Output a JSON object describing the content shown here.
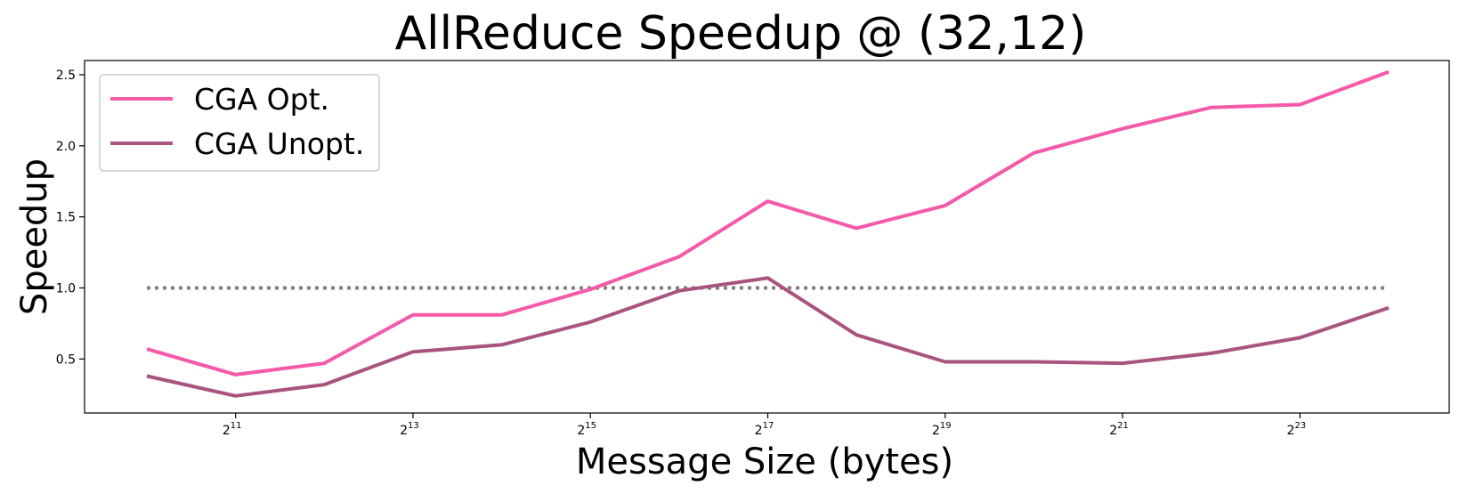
{
  "chart_data": {
    "type": "line",
    "title": "AllReduce Speedup @ (32,12)",
    "xlabel": "Message Size (bytes)",
    "ylabel": "Speedup",
    "x_scale": "log2",
    "x_tick_base": "2",
    "x": [
      1024,
      2048,
      4096,
      8192,
      16384,
      32768,
      65536,
      131072,
      262144,
      524288,
      1048576,
      2097152,
      4194304,
      8388608,
      16777216
    ],
    "x_ticks": [
      {
        "value": 2048,
        "exponent": "11"
      },
      {
        "value": 8192,
        "exponent": "13"
      },
      {
        "value": 32768,
        "exponent": "15"
      },
      {
        "value": 131072,
        "exponent": "17"
      },
      {
        "value": 524288,
        "exponent": "19"
      },
      {
        "value": 2097152,
        "exponent": "21"
      },
      {
        "value": 8388608,
        "exponent": "23"
      }
    ],
    "ylim": [
      0.12,
      2.6
    ],
    "y_ticks": [
      "0.5",
      "1.0",
      "1.5",
      "2.0",
      "2.5"
    ],
    "grid": false,
    "legend_position": "top-left",
    "series": [
      {
        "name": "CGA Opt.",
        "color": "#f55aa8",
        "values": [
          0.57,
          0.39,
          0.47,
          0.81,
          0.81,
          0.99,
          1.22,
          1.61,
          1.42,
          1.58,
          1.95,
          2.12,
          2.27,
          2.29,
          2.52
        ]
      },
      {
        "name": "CGA Unopt.",
        "color": "#a8547f",
        "values": [
          0.38,
          0.24,
          0.32,
          0.55,
          0.6,
          0.76,
          0.98,
          1.07,
          0.67,
          0.48,
          0.48,
          0.47,
          0.54,
          0.65,
          0.86
        ]
      }
    ],
    "reference_line": {
      "value": 1.0,
      "style": "dotted",
      "color": "#808080"
    }
  }
}
